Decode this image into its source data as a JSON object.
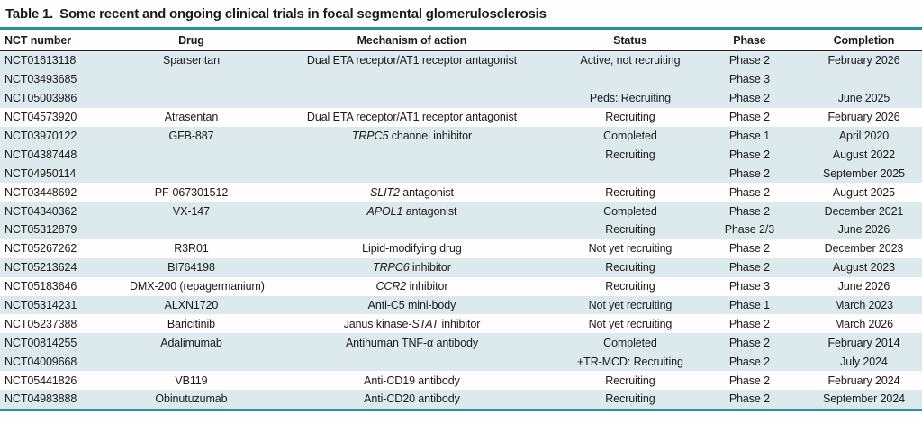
{
  "title": {
    "label": "Table 1.",
    "text": "Some recent and ongoing clinical trials in focal segmental glomerulosclerosis"
  },
  "colors": {
    "accent_teal": "#2a90a1",
    "row_shade": "#dce9ed",
    "text": "#1a1a1a"
  },
  "table": {
    "columns": [
      {
        "key": "nct",
        "label": "NCT number",
        "align": "left"
      },
      {
        "key": "drug",
        "label": "Drug",
        "align": "center"
      },
      {
        "key": "mechanism",
        "label": "Mechanism of action",
        "align": "center"
      },
      {
        "key": "status",
        "label": "Status",
        "align": "center"
      },
      {
        "key": "phase",
        "label": "Phase",
        "align": "center"
      },
      {
        "key": "completion",
        "label": "Completion",
        "align": "center"
      }
    ],
    "rows": [
      {
        "nct": "NCT01613118",
        "drug": "Sparsentan",
        "mechanism": [
          {
            "t": "Dual ETA receptor/AT1 receptor antagonist"
          }
        ],
        "status": "Active, not recruiting",
        "phase": "Phase 2",
        "completion": "February 2026",
        "shaded": true
      },
      {
        "nct": "NCT03493685",
        "drug": "",
        "mechanism": [],
        "status": "",
        "phase": "Phase 3",
        "completion": "",
        "shaded": true
      },
      {
        "nct": "NCT05003986",
        "drug": "",
        "mechanism": [],
        "status": "Peds: Recruiting",
        "phase": "Phase 2",
        "completion": "June 2025",
        "shaded": true
      },
      {
        "nct": "NCT04573920",
        "drug": "Atrasentan",
        "mechanism": [
          {
            "t": "Dual ETA receptor/AT1 receptor antagonist"
          }
        ],
        "status": "Recruiting",
        "phase": "Phase 2",
        "completion": "February 2026",
        "shaded": false
      },
      {
        "nct": "NCT03970122",
        "drug": "GFB-887",
        "mechanism": [
          {
            "t": "TRPC5",
            "i": true
          },
          {
            "t": " channel inhibitor"
          }
        ],
        "status": "Completed",
        "phase": "Phase 1",
        "completion": "April 2020",
        "shaded": true
      },
      {
        "nct": "NCT04387448",
        "drug": "",
        "mechanism": [],
        "status": "Recruiting",
        "phase": "Phase 2",
        "completion": "August 2022",
        "shaded": true
      },
      {
        "nct": "NCT04950114",
        "drug": "",
        "mechanism": [],
        "status": "",
        "phase": "Phase 2",
        "completion": "September 2025",
        "shaded": true
      },
      {
        "nct": "NCT03448692",
        "drug": "PF-067301512",
        "mechanism": [
          {
            "t": "SLIT2",
            "i": true
          },
          {
            "t": " antagonist"
          }
        ],
        "status": "Recruiting",
        "phase": "Phase 2",
        "completion": "August 2025",
        "shaded": false
      },
      {
        "nct": "NCT04340362",
        "drug": "VX-147",
        "mechanism": [
          {
            "t": "APOL1",
            "i": true
          },
          {
            "t": " antagonist"
          }
        ],
        "status": "Completed",
        "phase": "Phase 2",
        "completion": "December 2021",
        "shaded": true
      },
      {
        "nct": "NCT05312879",
        "drug": "",
        "mechanism": [],
        "status": "Recruiting",
        "phase": "Phase 2/3",
        "completion": "June 2026",
        "shaded": true
      },
      {
        "nct": "NCT05267262",
        "drug": "R3R01",
        "mechanism": [
          {
            "t": "Lipid-modifying drug"
          }
        ],
        "status": "Not yet recruiting",
        "phase": "Phase 2",
        "completion": "December 2023",
        "shaded": false
      },
      {
        "nct": "NCT05213624",
        "drug": "BI764198",
        "mechanism": [
          {
            "t": "TRPC6",
            "i": true
          },
          {
            "t": " inhibitor"
          }
        ],
        "status": "Recruiting",
        "phase": "Phase 2",
        "completion": "August 2023",
        "shaded": true
      },
      {
        "nct": "NCT05183646",
        "drug": "DMX-200 (repagermanium)",
        "mechanism": [
          {
            "t": "CCR2",
            "i": true
          },
          {
            "t": " inhibitor"
          }
        ],
        "status": "Recruiting",
        "phase": "Phase 3",
        "completion": "June 2026",
        "shaded": false
      },
      {
        "nct": "NCT05314231",
        "drug": "ALXN1720",
        "mechanism": [
          {
            "t": "Anti-C5 mini-body"
          }
        ],
        "status": "Not yet recruiting",
        "phase": "Phase 1",
        "completion": "March 2023",
        "shaded": true
      },
      {
        "nct": "NCT05237388",
        "drug": "Baricitinib",
        "mechanism": [
          {
            "t": "Janus kinase-"
          },
          {
            "t": "STAT",
            "i": true
          },
          {
            "t": " inhibitor"
          }
        ],
        "status": "Not yet recruiting",
        "phase": "Phase 2",
        "completion": "March 2026",
        "shaded": false
      },
      {
        "nct": "NCT00814255",
        "drug": "Adalimumab",
        "mechanism": [
          {
            "t": "Antihuman TNF-α antibody"
          }
        ],
        "status": "Completed",
        "phase": "Phase 2",
        "completion": "February 2014",
        "shaded": true
      },
      {
        "nct": "NCT04009668",
        "drug": "",
        "mechanism": [],
        "status": "+TR-MCD: Recruiting",
        "phase": "Phase 2",
        "completion": "July 2024",
        "shaded": true
      },
      {
        "nct": "NCT05441826",
        "drug": "VB119",
        "mechanism": [
          {
            "t": "Anti-CD19 antibody"
          }
        ],
        "status": "Recruiting",
        "phase": "Phase 2",
        "completion": "February 2024",
        "shaded": false
      },
      {
        "nct": "NCT04983888",
        "drug": "Obinutuzumab",
        "mechanism": [
          {
            "t": "Anti-CD20 antibody"
          }
        ],
        "status": "Recruiting",
        "phase": "Phase 2",
        "completion": "September 2024",
        "shaded": true
      }
    ]
  }
}
